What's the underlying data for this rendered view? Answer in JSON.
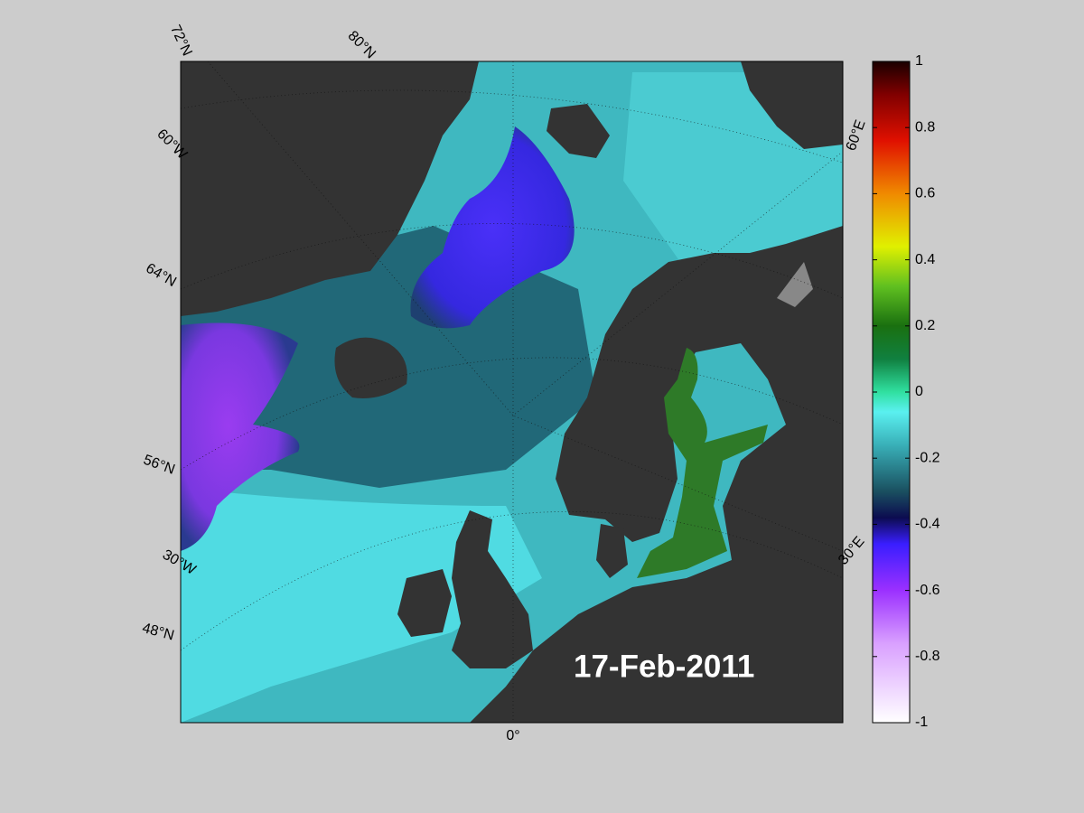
{
  "map": {
    "date_label": "17-Feb-2011",
    "graticule_labels": [
      "72°N",
      "80°N",
      "60°W",
      "64°N",
      "56°N",
      "30°W",
      "48°N",
      "0°",
      "60°E",
      "30°E"
    ]
  },
  "colorbar": {
    "lim": [
      -1,
      1
    ],
    "ticks": [
      -1,
      -0.8,
      -0.6,
      -0.4,
      -0.2,
      0,
      0.2,
      0.4,
      0.6,
      0.8,
      1
    ]
  }
}
